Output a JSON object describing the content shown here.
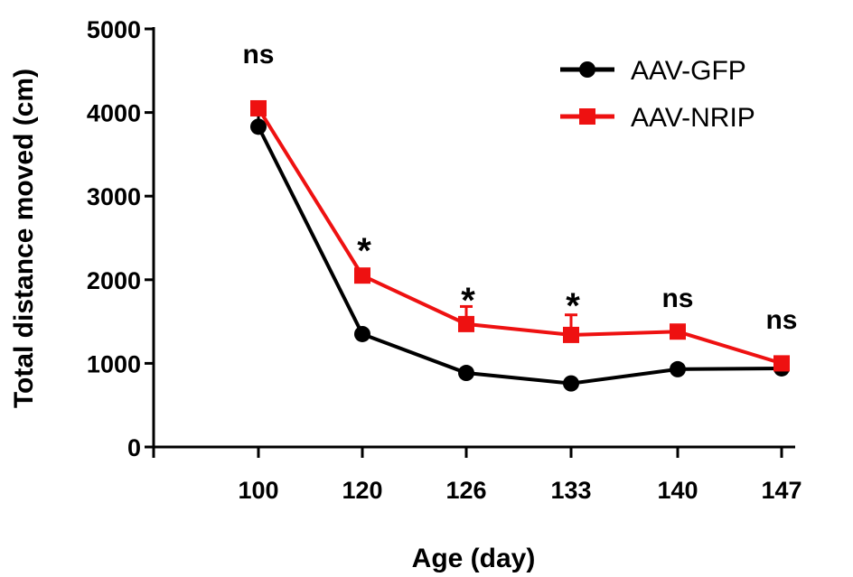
{
  "chart_data": {
    "type": "line",
    "title": "",
    "xlabel": "Age (day)",
    "ylabel": "Total distance moved (cm)",
    "categories": [
      "100",
      "120",
      "126",
      "133",
      "140",
      "147"
    ],
    "ylim": [
      0,
      5000
    ],
    "yticks": [
      "0",
      "1000",
      "2000",
      "3000",
      "4000",
      "5000"
    ],
    "grid": false,
    "legend_position": "top-right",
    "series": [
      {
        "name": "AAV-GFP",
        "color": "#000000",
        "marker": "circle",
        "values": [
          3830,
          1350,
          885,
          760,
          930,
          940
        ],
        "errors": [
          190,
          40,
          40,
          40,
          40,
          40
        ]
      },
      {
        "name": "AAV-NRIP",
        "color": "#ee1111",
        "marker": "square",
        "values": [
          4050,
          2050,
          1470,
          1340,
          1380,
          1000
        ],
        "errors": [
          60,
          60,
          210,
          240,
          60,
          40
        ]
      }
    ],
    "annotations": [
      "ns",
      "*",
      "*",
      "*",
      "ns",
      "ns"
    ]
  }
}
